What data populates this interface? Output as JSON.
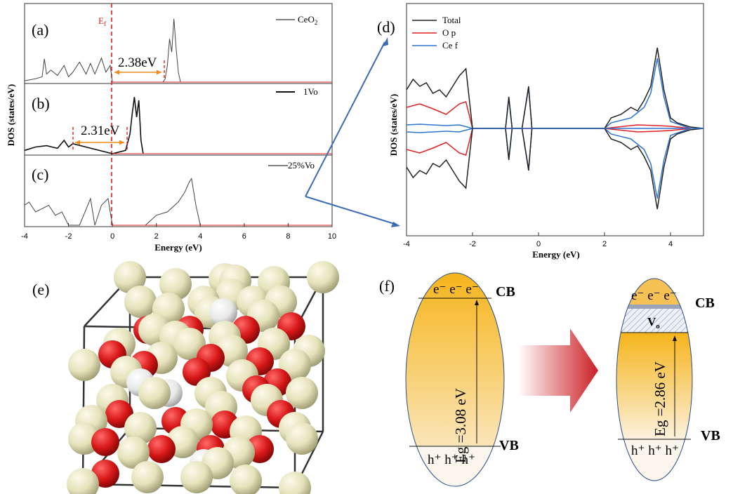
{
  "panels": {
    "a": "(a)",
    "b": "(b)",
    "c": "(c)",
    "d": "(d)",
    "e": "(e)",
    "f": "(f)"
  },
  "left_plot": {
    "ylabel": "DOS (states/eV)",
    "xlabel": "Energy (eV)",
    "xticks": [
      "-4",
      "-2",
      "0",
      "2",
      "4",
      "6",
      "8",
      "10"
    ],
    "fermi_label": "E",
    "fermi_sub": "f",
    "legend": [
      "CeO",
      "1Vo",
      "25%Vo"
    ],
    "gap_a": "2.38eV",
    "gap_b": "2.31eV"
  },
  "right_plot": {
    "ylabel": "DOS (states/eV)",
    "xlabel": "Energy (eV)",
    "xticks": [
      "-4",
      "-2",
      "0",
      "2",
      "4"
    ],
    "legend": [
      "Total",
      "O p",
      "Ce f"
    ]
  },
  "band_diagram": {
    "left": {
      "cb": "CB",
      "vb": "VB",
      "electrons": "e⁻ e⁻ e⁻",
      "holes": "h⁺ h⁺ h⁺",
      "gap": "Eg =3.08 eV"
    },
    "right": {
      "cb": "CB",
      "vb": "VB",
      "electrons": "e⁻ e⁻ e⁻",
      "holes": "h⁺ h⁺ h⁺",
      "gap": "Eg =2.86 eV",
      "vacancy": "V",
      "vacancy_sub": "o"
    }
  },
  "colors": {
    "total": "#222222",
    "op": "#e02020",
    "cef": "#2f74d0",
    "fermi": "#e02020",
    "gap_arrow": "#f08a1a",
    "band_fill": "#f6b41c",
    "o_atom": "#d81818",
    "ce_atom": "#e9e6bf"
  },
  "chart_data": [
    {
      "type": "line",
      "xlabel": "Energy (eV)",
      "ylabel": "DOS (states/eV)",
      "xlim": [
        -4,
        10
      ],
      "series": [
        {
          "name": "CeO2",
          "x": [
            -4,
            -3.5,
            -3.2,
            -3.1,
            -3.0,
            -2.8,
            -2.5,
            -2.2,
            -2.0,
            -1.8,
            -1.5,
            -1.2,
            -1.0,
            -0.8,
            -0.5,
            -0.3,
            -0.1,
            0,
            2.3,
            2.4,
            2.5,
            2.6,
            2.7,
            2.8,
            2.9,
            3.0,
            3.1
          ],
          "y": [
            0.02,
            0.05,
            0.08,
            0.35,
            0.12,
            0.18,
            0.1,
            0.25,
            0.08,
            0.15,
            0.3,
            0.12,
            0.28,
            0.12,
            0.36,
            0.15,
            0.25,
            0,
            0,
            0.05,
            0.25,
            0.65,
            0.45,
            0.95,
            0.5,
            0.15,
            0
          ]
        },
        {
          "name": "1Vo",
          "x": [
            -4,
            -3.5,
            -3.0,
            -2.5,
            -2.2,
            -2.0,
            -1.8,
            0,
            0.6,
            0.8,
            0.9,
            1.0,
            1.1,
            1.2,
            1.3,
            1.4
          ],
          "y": [
            0.05,
            0.1,
            0.12,
            0.08,
            0.2,
            0.1,
            0.15,
            0,
            0.05,
            0.3,
            0.6,
            0.85,
            0.55,
            0.8,
            0.2,
            0
          ]
        },
        {
          "name": "25%Vo",
          "x": [
            -4,
            -3.8,
            -3.5,
            -3.2,
            -2.9,
            -2.6,
            -2.3,
            -2.0,
            -1.5,
            -1.0,
            -0.8,
            -0.5,
            -0.2,
            0,
            1.5,
            2.0,
            2.5,
            3.0,
            3.3,
            3.5,
            3.6,
            3.8,
            4.0
          ],
          "y": [
            0.3,
            0.35,
            0.2,
            0.25,
            0.3,
            0.15,
            0.2,
            0,
            0,
            0.4,
            0,
            0.3,
            0.4,
            0,
            0,
            0.15,
            0.2,
            0.35,
            0.5,
            0.65,
            0.7,
            0.3,
            0
          ]
        }
      ]
    },
    {
      "type": "line",
      "xlabel": "Energy (eV)",
      "ylabel": "DOS (states/eV)",
      "xlim": [
        -4,
        5
      ],
      "series": [
        {
          "name": "Total",
          "x": [
            -4,
            -3.8,
            -3.6,
            -3.4,
            -3.2,
            -3.0,
            -2.8,
            -2.6,
            -2.4,
            -2.2,
            -2.0,
            -1.0,
            -0.9,
            -0.8,
            -0.5,
            -0.3,
            -0.2,
            0,
            2,
            2.2,
            2.5,
            2.8,
            3.0,
            3.2,
            3.4,
            3.6,
            3.8,
            4.0,
            4.2,
            4.4,
            4.6,
            5.0
          ],
          "y_up": [
            0.55,
            0.7,
            0.6,
            0.65,
            0.5,
            0.55,
            0.45,
            0.6,
            0.75,
            0.85,
            0,
            0,
            0.45,
            0,
            0,
            0.6,
            0,
            0,
            0,
            0.15,
            0.2,
            0.3,
            0.25,
            0.4,
            0.6,
            1.15,
            0.55,
            0.15,
            0.08,
            0.05,
            0.02,
            0
          ]
        },
        {
          "name": "O p",
          "x": [
            -4,
            -3.6,
            -3.2,
            -2.8,
            -2.4,
            -2.2,
            -2.0,
            2,
            3,
            3.6,
            4.0,
            4.6
          ],
          "y_up": [
            0.3,
            0.35,
            0.28,
            0.2,
            0.35,
            0.38,
            0,
            0,
            0.05,
            0.04,
            0.03,
            0
          ]
        },
        {
          "name": "Ce f",
          "x": [
            -4,
            -3.6,
            -3.2,
            -2.8,
            -2.4,
            -2.0,
            -1.0,
            -0.9,
            -0.8,
            -0.5,
            -0.3,
            -0.2,
            0,
            2,
            2.2,
            2.8,
            3.2,
            3.4,
            3.6,
            3.8,
            4.0,
            4.6
          ],
          "y_up": [
            0.05,
            0.06,
            0.05,
            0.04,
            0.05,
            0,
            0,
            0.43,
            0,
            0,
            0.58,
            0,
            0,
            0,
            0.08,
            0.15,
            0.3,
            0.5,
            1.0,
            0.45,
            0.1,
            0
          ]
        }
      ]
    }
  ]
}
